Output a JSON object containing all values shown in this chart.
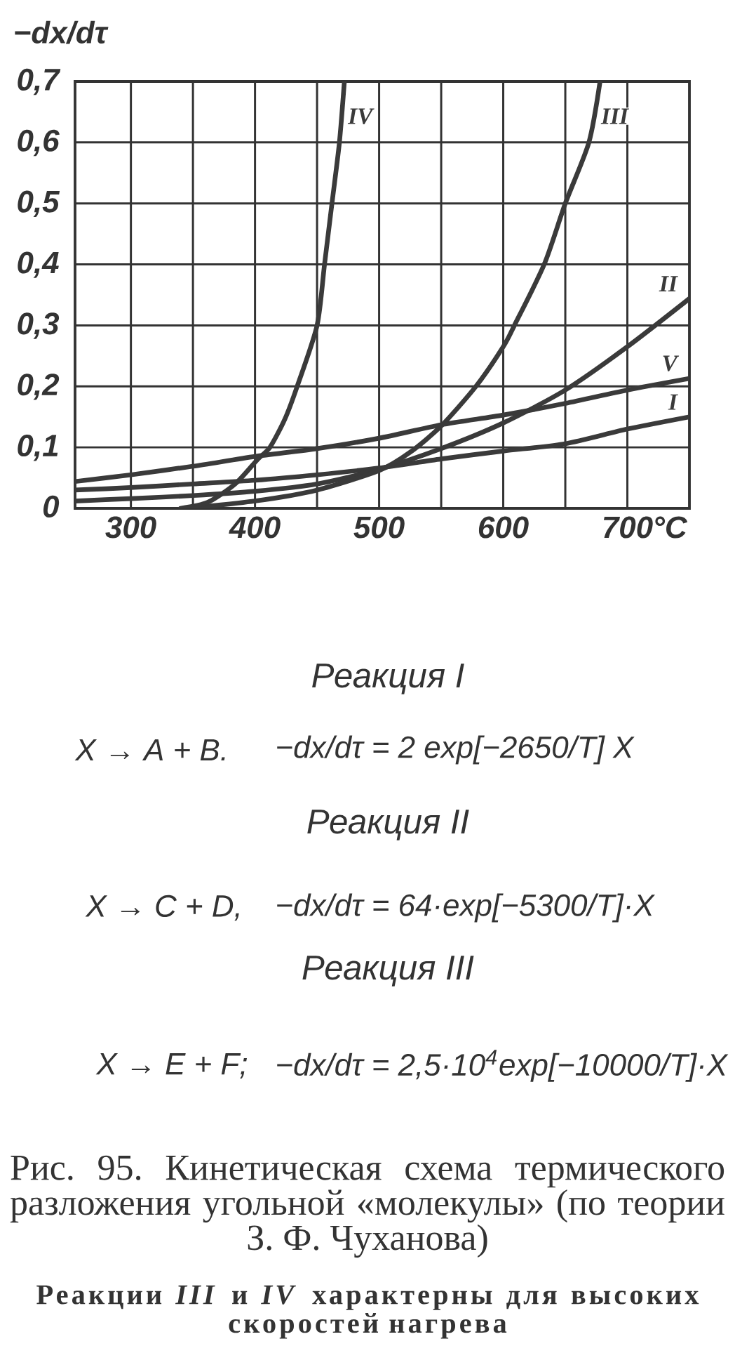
{
  "chart_data": {
    "type": "line",
    "title": "Рис. 95. Кинетическая схема термического разложения угольной «молекулы» (по теории З. Ф. Чуханова)",
    "subtitle": "Реакции *III* и *IV* характерны для высоких скоростей нагрева",
    "xlabel": "°C",
    "ylabel": "−dx/dτ",
    "xlim": [
      255,
      750
    ],
    "ylim": [
      0,
      0.7
    ],
    "xticks": [
      300,
      {
        "value": 350,
        "label": null
      },
      400,
      {
        "value": 450,
        "label": null
      },
      500,
      {
        "value": 550,
        "label": null
      },
      600,
      {
        "value": 650,
        "label": null
      },
      700
    ],
    "yticks": [
      0,
      {
        "value": 0.1,
        "label": "0,1"
      },
      {
        "value": 0.2,
        "label": "0,2"
      },
      {
        "value": 0.3,
        "label": "0,3"
      },
      {
        "value": 0.4,
        "label": "0,4"
      },
      {
        "value": 0.5,
        "label": "0,5"
      },
      {
        "value": 0.6,
        "label": "0,6"
      },
      {
        "value": 0.7,
        "label": "0,7"
      }
    ],
    "grid": true,
    "series": [
      {
        "name": "I",
        "color": "#3a3a3a",
        "x": [
          255,
          300,
          350,
          400,
          450,
          500,
          550,
          600,
          650,
          700,
          750
        ],
        "values": [
          0.03,
          0.034,
          0.04,
          0.046,
          0.055,
          0.066,
          0.081,
          0.094,
          0.106,
          0.13,
          0.15
        ]
      },
      {
        "name": "II",
        "color": "#3a3a3a",
        "x": [
          255,
          300,
          350,
          400,
          450,
          500,
          550,
          600,
          650,
          700,
          750
        ],
        "values": [
          0.012,
          0.016,
          0.021,
          0.028,
          0.04,
          0.064,
          0.098,
          0.14,
          0.194,
          0.265,
          0.344
        ]
      },
      {
        "name": "III",
        "color": "#3a3a3a",
        "x": [
          345,
          400,
          450,
          500,
          525,
          550,
          578,
          600,
          609,
          633,
          650,
          669,
          678
        ],
        "values": [
          0,
          0.012,
          0.03,
          0.062,
          0.092,
          0.135,
          0.2,
          0.265,
          0.3,
          0.4,
          0.5,
          0.6,
          0.7
        ]
      },
      {
        "name": "IV",
        "color": "#3a3a3a",
        "x": [
          340,
          362,
          384,
          402,
          412,
          424,
          434,
          450,
          456,
          462,
          468,
          472
        ],
        "values": [
          0,
          0.01,
          0.04,
          0.08,
          0.1,
          0.146,
          0.2,
          0.3,
          0.4,
          0.5,
          0.6,
          0.7
        ]
      },
      {
        "name": "V",
        "color": "#3a3a3a",
        "x": [
          255,
          300,
          350,
          400,
          450,
          500,
          550,
          600,
          650,
          700,
          750
        ],
        "values": [
          0.044,
          0.055,
          0.069,
          0.085,
          0.098,
          0.115,
          0.137,
          0.153,
          0.172,
          0.194,
          0.213
        ]
      }
    ],
    "annotations": [
      "Реакция I",
      "X → A + B.",
      "−dx/dτ = 2 exp[−2650/T] X",
      "Реакция II",
      "X → C + D,",
      "−dx/dτ = 64·exp[−5300/T]·X",
      "Реакция III",
      "X → E + F;",
      "−dx/dτ = 2,5·10$^{4}$exp[−10000/T]·X"
    ]
  }
}
